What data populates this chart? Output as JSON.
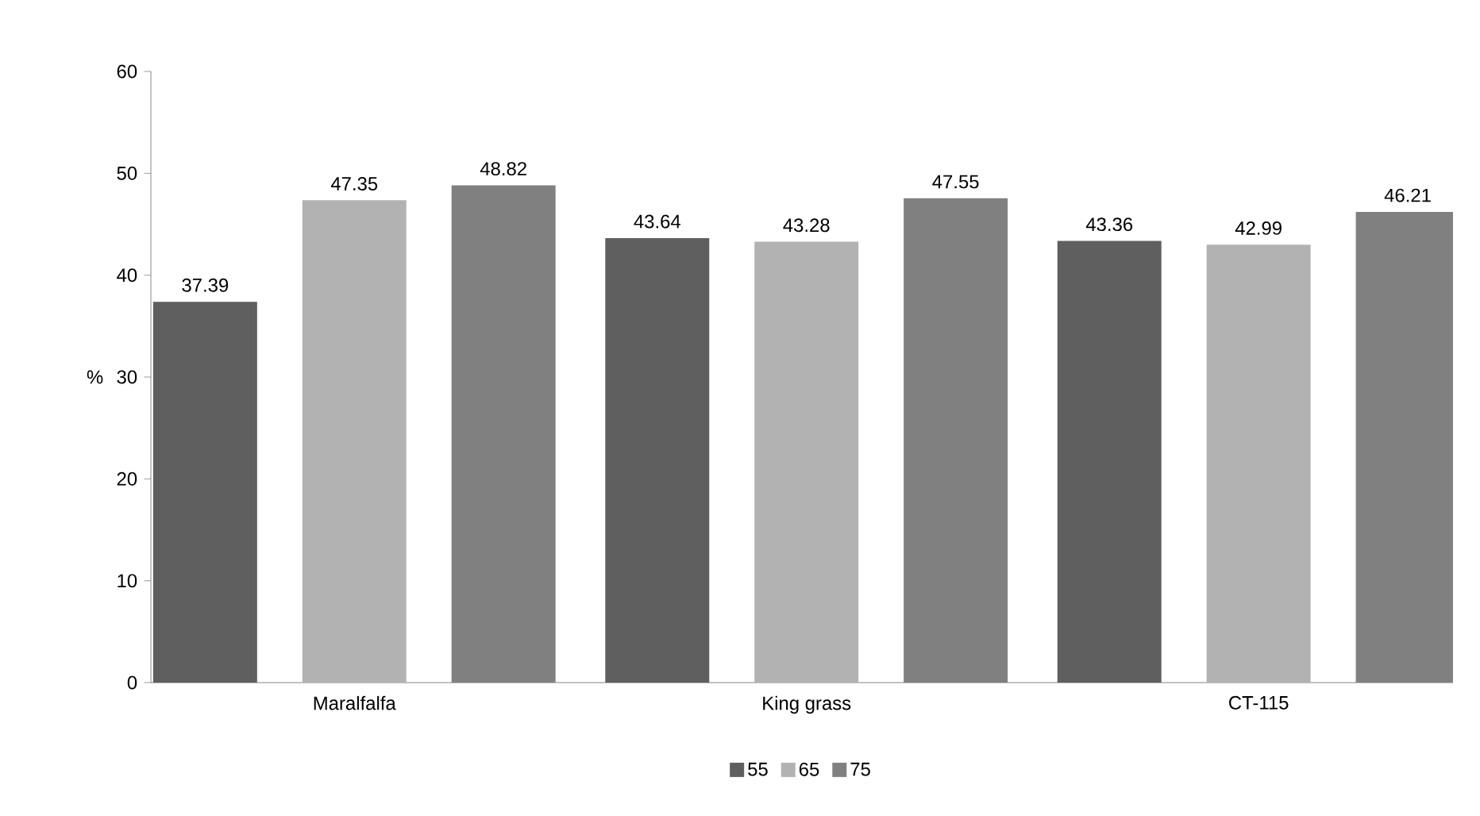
{
  "chart_data": {
    "type": "bar",
    "ylabel": "%",
    "categories": [
      "Maralfalfa",
      "King grass",
      "CT-115"
    ],
    "series": [
      {
        "name": "55",
        "color": "#5f5f5f",
        "values": [
          37.39,
          43.64,
          43.36
        ]
      },
      {
        "name": "65",
        "color": "#b2b2b2",
        "values": [
          47.35,
          43.28,
          42.99
        ]
      },
      {
        "name": "75",
        "color": "#808080",
        "values": [
          48.82,
          47.55,
          46.21
        ]
      }
    ],
    "ylim": [
      0,
      60
    ],
    "yticks": [
      0,
      10,
      20,
      30,
      40,
      50,
      60
    ],
    "grid": false,
    "legend": "bottom",
    "data_labels": true
  }
}
